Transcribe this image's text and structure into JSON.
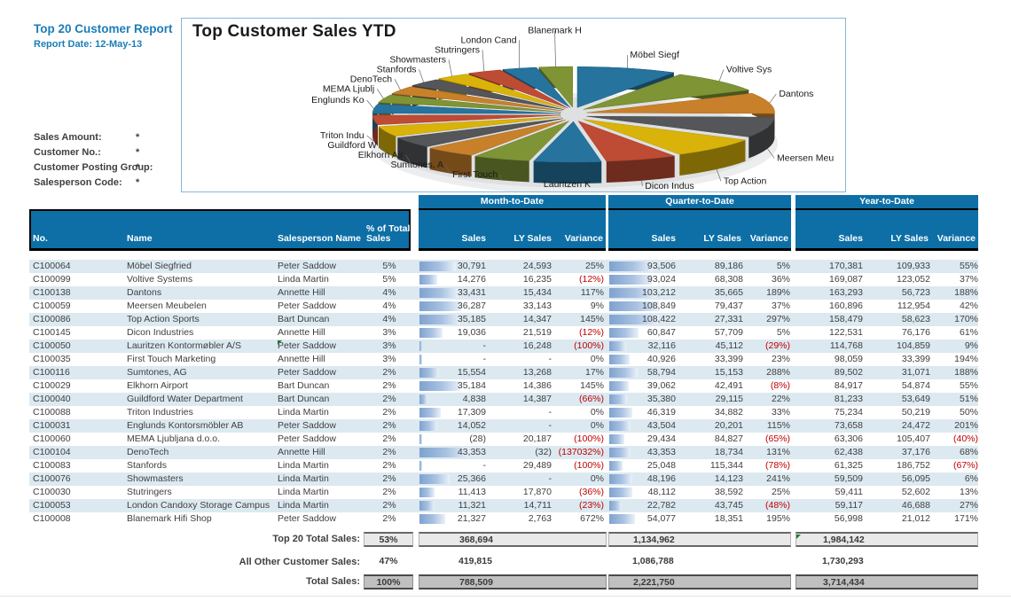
{
  "report": {
    "title": "Top 20 Customer Report",
    "date_label": "Report Date:",
    "date_value": "12-May-13",
    "filters": [
      {
        "label": "Sales Amount:",
        "value": "*"
      },
      {
        "label": "Customer No.:",
        "value": "*"
      },
      {
        "label": "Customer Posting Group:",
        "value": "*"
      },
      {
        "label": "Salesperson Code:",
        "value": "*"
      }
    ]
  },
  "colors": {
    "header_blue": "#0d6fa6",
    "row_stripe": "#dce9f1",
    "negative_red": "#c00000",
    "accent_blue": "#1b7db6",
    "databar_blue": "#7ea2cf",
    "comment_green": "#1e7d1e",
    "pie_palette": [
      "#26739e",
      "#7e9435",
      "#c8802b",
      "#55565a",
      "#d9b30a",
      "#be4b33"
    ]
  },
  "chart_data": {
    "type": "pie",
    "title": "Top Customer Sales YTD",
    "style": "3d-exploded",
    "start_angle": "top",
    "direction": "clockwise",
    "legend_position": "none",
    "labels": [
      "Möbel Siegf",
      "Voltive Sys",
      "Dantons",
      "Meersen Meu",
      "Top Action",
      "Dicon Indus",
      "Lauritzen K",
      "First Touch",
      "Sumtones, A",
      "Elkhorn Air",
      "Guildford W",
      "Triton Indu",
      "Englunds Ko",
      "MEMA Ljublj",
      "DenoTech",
      "Stanfords",
      "Showmasters",
      "Stutringers",
      "London Cand",
      "Blanemark H"
    ],
    "values": [
      170381,
      169087,
      163293,
      160896,
      158479,
      122531,
      114768,
      98059,
      89502,
      84917,
      81233,
      75234,
      73658,
      63306,
      62438,
      61325,
      59509,
      59411,
      59117,
      56998
    ]
  },
  "table": {
    "left_headers": [
      "No.",
      "Name",
      "Salesperson Name",
      "% of Total Sales"
    ],
    "group_headers": [
      "Month-to-Date",
      "Quarter-to-Date",
      "Year-to-Date"
    ],
    "sub_headers": [
      "Sales",
      "LY Sales",
      "Variance"
    ],
    "rows": [
      {
        "no": "C100064",
        "name": "Möbel Siegfried",
        "salesperson": "Peter Saddow",
        "pct": "5%",
        "mtd_sales": "30,791",
        "mtd_ly": "24,593",
        "mtd_var": "25%",
        "qtd_sales": "93,506",
        "qtd_ly": "89,186",
        "qtd_var": "5%",
        "ytd_sales": "170,381",
        "ytd_ly": "109,933",
        "ytd_var": "55%"
      },
      {
        "no": "C100099",
        "name": "Voltive Systems",
        "salesperson": "Linda Martin",
        "pct": "5%",
        "mtd_sales": "14,276",
        "mtd_ly": "16,235",
        "mtd_var": "(12%)",
        "qtd_sales": "93,024",
        "qtd_ly": "68,308",
        "qtd_var": "36%",
        "ytd_sales": "169,087",
        "ytd_ly": "123,052",
        "ytd_var": "37%"
      },
      {
        "no": "C100138",
        "name": "Dantons",
        "salesperson": "Annette Hill",
        "pct": "4%",
        "mtd_sales": "33,431",
        "mtd_ly": "15,434",
        "mtd_var": "117%",
        "qtd_sales": "103,212",
        "qtd_ly": "35,665",
        "qtd_var": "189%",
        "ytd_sales": "163,293",
        "ytd_ly": "56,723",
        "ytd_var": "188%"
      },
      {
        "no": "C100059",
        "name": "Meersen Meubelen",
        "salesperson": "Peter Saddow",
        "pct": "4%",
        "mtd_sales": "36,287",
        "mtd_ly": "33,143",
        "mtd_var": "9%",
        "qtd_sales": "108,849",
        "qtd_ly": "79,437",
        "qtd_var": "37%",
        "ytd_sales": "160,896",
        "ytd_ly": "112,954",
        "ytd_var": "42%"
      },
      {
        "no": "C100086",
        "name": "Top Action Sports",
        "salesperson": "Bart Duncan",
        "pct": "4%",
        "mtd_sales": "35,185",
        "mtd_ly": "14,347",
        "mtd_var": "145%",
        "qtd_sales": "108,422",
        "qtd_ly": "27,331",
        "qtd_var": "297%",
        "ytd_sales": "158,479",
        "ytd_ly": "58,623",
        "ytd_var": "170%"
      },
      {
        "no": "C100145",
        "name": "Dicon Industries",
        "salesperson": "Annette Hill",
        "pct": "3%",
        "mtd_sales": "19,036",
        "mtd_ly": "21,519",
        "mtd_var": "(12%)",
        "qtd_sales": "60,847",
        "qtd_ly": "57,709",
        "qtd_var": "5%",
        "ytd_sales": "122,531",
        "ytd_ly": "76,176",
        "ytd_var": "61%"
      },
      {
        "no": "C100050",
        "name": "Lauritzen Kontormøbler A/S",
        "salesperson": "Peter Saddow",
        "pct": "3%",
        "comment": true,
        "mtd_sales": "-",
        "mtd_ly": "16,248",
        "mtd_var": "(100%)",
        "qtd_sales": "32,116",
        "qtd_ly": "45,112",
        "qtd_var": "(29%)",
        "ytd_sales": "114,768",
        "ytd_ly": "104,859",
        "ytd_var": "9%"
      },
      {
        "no": "C100035",
        "name": "First Touch Marketing",
        "salesperson": "Annette Hill",
        "pct": "3%",
        "mtd_sales": "-",
        "mtd_ly": "-",
        "mtd_var": "0%",
        "qtd_sales": "40,926",
        "qtd_ly": "33,399",
        "qtd_var": "23%",
        "ytd_sales": "98,059",
        "ytd_ly": "33,399",
        "ytd_var": "194%"
      },
      {
        "no": "C100116",
        "name": "Sumtones, AG",
        "salesperson": "Peter Saddow",
        "pct": "2%",
        "mtd_sales": "15,554",
        "mtd_ly": "13,268",
        "mtd_var": "17%",
        "qtd_sales": "58,794",
        "qtd_ly": "15,153",
        "qtd_var": "288%",
        "ytd_sales": "89,502",
        "ytd_ly": "31,071",
        "ytd_var": "188%"
      },
      {
        "no": "C100029",
        "name": "Elkhorn Airport",
        "salesperson": "Bart Duncan",
        "pct": "2%",
        "mtd_sales": "35,184",
        "mtd_ly": "14,386",
        "mtd_var": "145%",
        "qtd_sales": "39,062",
        "qtd_ly": "42,491",
        "qtd_var": "(8%)",
        "ytd_sales": "84,917",
        "ytd_ly": "54,874",
        "ytd_var": "55%"
      },
      {
        "no": "C100040",
        "name": "Guildford Water Department",
        "salesperson": "Bart Duncan",
        "pct": "2%",
        "mtd_sales": "4,838",
        "mtd_ly": "14,387",
        "mtd_var": "(66%)",
        "qtd_sales": "35,380",
        "qtd_ly": "29,115",
        "qtd_var": "22%",
        "ytd_sales": "81,233",
        "ytd_ly": "53,649",
        "ytd_var": "51%"
      },
      {
        "no": "C100088",
        "name": "Triton Industries",
        "salesperson": "Linda Martin",
        "pct": "2%",
        "mtd_sales": "17,309",
        "mtd_ly": "-",
        "mtd_var": "0%",
        "qtd_sales": "46,319",
        "qtd_ly": "34,882",
        "qtd_var": "33%",
        "ytd_sales": "75,234",
        "ytd_ly": "50,219",
        "ytd_var": "50%"
      },
      {
        "no": "C100031",
        "name": "Englunds Kontorsmöbler AB",
        "salesperson": "Peter Saddow",
        "pct": "2%",
        "mtd_sales": "14,052",
        "mtd_ly": "-",
        "mtd_var": "0%",
        "qtd_sales": "43,504",
        "qtd_ly": "20,201",
        "qtd_var": "115%",
        "ytd_sales": "73,658",
        "ytd_ly": "24,472",
        "ytd_var": "201%"
      },
      {
        "no": "C100060",
        "name": "MEMA Ljubljana d.o.o.",
        "salesperson": "Peter Saddow",
        "pct": "2%",
        "mtd_sales": "(28)",
        "mtd_ly": "20,187",
        "mtd_var": "(100%)",
        "qtd_sales": "29,434",
        "qtd_ly": "84,827",
        "qtd_var": "(65%)",
        "ytd_sales": "63,306",
        "ytd_ly": "105,407",
        "ytd_var": "(40%)"
      },
      {
        "no": "C100104",
        "name": "DenoTech",
        "salesperson": "Annette Hill",
        "pct": "2%",
        "mtd_sales": "43,353",
        "mtd_ly": "(32)",
        "mtd_var": "(137032%)",
        "qtd_sales": "43,353",
        "qtd_ly": "18,734",
        "qtd_var": "131%",
        "ytd_sales": "62,438",
        "ytd_ly": "37,176",
        "ytd_var": "68%"
      },
      {
        "no": "C100083",
        "name": "Stanfords",
        "salesperson": "Linda Martin",
        "pct": "2%",
        "mtd_sales": "-",
        "mtd_ly": "29,489",
        "mtd_var": "(100%)",
        "qtd_sales": "25,048",
        "qtd_ly": "115,344",
        "qtd_var": "(78%)",
        "ytd_sales": "61,325",
        "ytd_ly": "186,752",
        "ytd_var": "(67%)"
      },
      {
        "no": "C100076",
        "name": "Showmasters",
        "salesperson": "Linda Martin",
        "pct": "2%",
        "mtd_sales": "25,366",
        "mtd_ly": "-",
        "mtd_var": "0%",
        "qtd_sales": "48,196",
        "qtd_ly": "14,123",
        "qtd_var": "241%",
        "ytd_sales": "59,509",
        "ytd_ly": "56,095",
        "ytd_var": "6%"
      },
      {
        "no": "C100030",
        "name": "Stutringers",
        "salesperson": "Linda Martin",
        "pct": "2%",
        "mtd_sales": "11,413",
        "mtd_ly": "17,870",
        "mtd_var": "(36%)",
        "qtd_sales": "48,112",
        "qtd_ly": "38,592",
        "qtd_var": "25%",
        "ytd_sales": "59,411",
        "ytd_ly": "52,602",
        "ytd_var": "13%"
      },
      {
        "no": "C100053",
        "name": "London Candoxy Storage Campus",
        "salesperson": "Linda Martin",
        "pct": "2%",
        "mtd_sales": "11,321",
        "mtd_ly": "14,711",
        "mtd_var": "(23%)",
        "qtd_sales": "22,782",
        "qtd_ly": "43,745",
        "qtd_var": "(48%)",
        "ytd_sales": "59,117",
        "ytd_ly": "46,688",
        "ytd_var": "27%"
      },
      {
        "no": "C100008",
        "name": "Blanemark Hifi Shop",
        "salesperson": "Peter Saddow",
        "pct": "2%",
        "mtd_sales": "21,327",
        "mtd_ly": "2,763",
        "mtd_var": "672%",
        "qtd_sales": "54,077",
        "qtd_ly": "18,351",
        "qtd_var": "195%",
        "ytd_sales": "56,998",
        "ytd_ly": "21,012",
        "ytd_var": "171%"
      }
    ]
  },
  "totals": {
    "top20": {
      "label": "Top 20 Total Sales:",
      "pct": "53%",
      "mtd": "368,694",
      "qtd": "1,134,962",
      "ytd": "1,984,142"
    },
    "other": {
      "label": "All Other Customer Sales:",
      "pct": "47%",
      "mtd": "419,815",
      "qtd": "1,086,788",
      "ytd": "1,730,293"
    },
    "total": {
      "label": "Total Sales:",
      "pct": "100%",
      "mtd": "788,509",
      "qtd": "2,221,750",
      "ytd": "3,714,434"
    }
  }
}
